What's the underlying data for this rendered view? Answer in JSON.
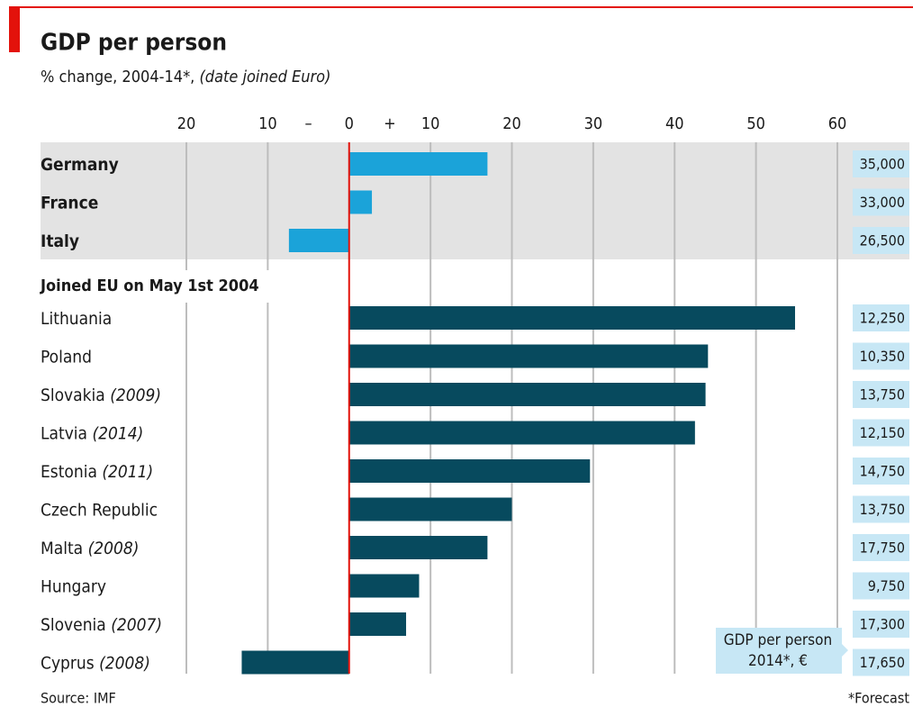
{
  "chart_data": {
    "type": "bar",
    "title": "GDP per person",
    "subtitle": "% change, 2004-14*,",
    "subtitle_note": "(date joined Euro)",
    "xlim": [
      -20,
      60
    ],
    "xticks": [
      {
        "value": -20,
        "label": "20"
      },
      {
        "value": -10,
        "label": "10"
      },
      0,
      10,
      20,
      30,
      40,
      50,
      60
    ],
    "sign_labels": [
      {
        "value": -5,
        "label": "–"
      },
      {
        "value": 5,
        "label": "+"
      }
    ],
    "groups": [
      {
        "categories": [
          "Germany",
          "France",
          "Italy"
        ],
        "notes": [
          null,
          null,
          null
        ],
        "values": [
          17.0,
          2.8,
          -7.4
        ],
        "color": "#1ba3d9",
        "gdp": [
          35000,
          33000,
          26500
        ],
        "gdp_labels": [
          "35,000",
          "33,000",
          "26,500"
        ]
      },
      {
        "title": "Joined EU on May 1st 2004",
        "categories": [
          "Lithuania",
          "Poland",
          "Slovakia",
          "Latvia",
          "Estonia",
          "Czech Republic",
          "Malta",
          "Hungary",
          "Slovenia",
          "Cyprus"
        ],
        "notes": [
          null,
          null,
          "(2009)",
          "(2014)",
          "(2011)",
          null,
          "(2008)",
          null,
          "(2007)",
          "(2008)"
        ],
        "values": [
          54.8,
          44.1,
          43.8,
          42.5,
          29.6,
          20.0,
          17.0,
          8.6,
          7.0,
          -13.2
        ],
        "color": "#074a5e",
        "gdp": [
          12250,
          10350,
          13750,
          12150,
          14750,
          13750,
          17750,
          9750,
          17300,
          17650
        ],
        "gdp_labels": [
          "12,250",
          "10,350",
          "13,750",
          "12,150",
          "14,750",
          "13,750",
          "17,750",
          "9,750",
          "17,300",
          "17,650"
        ]
      }
    ],
    "gdp_title": [
      "GDP per person",
      "2014*, €"
    ],
    "source": "Source: IMF",
    "footnote": "*Forecast"
  }
}
